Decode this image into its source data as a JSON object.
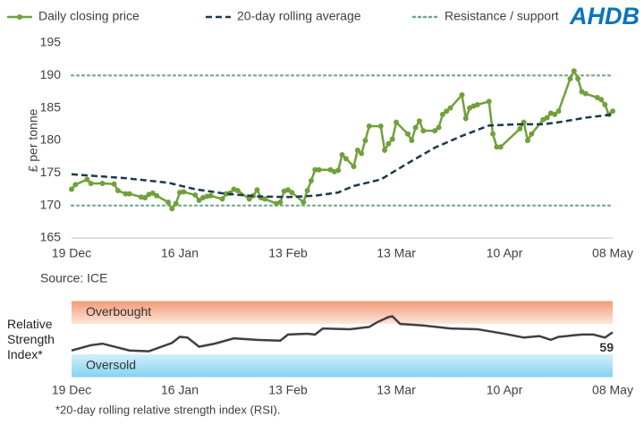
{
  "logo": "AHDB",
  "chart_data": [
    {
      "type": "line",
      "ylabel": "£ per tonne",
      "xlim": [
        "19 Dec",
        "08 May"
      ],
      "xticks": [
        "19 Dec",
        "16 Jan",
        "13 Feb",
        "13 Mar",
        "10 Apr",
        "08 May"
      ],
      "ylim": [
        165,
        195
      ],
      "yticks": [
        165,
        170,
        175,
        180,
        185,
        190,
        195
      ],
      "series": [
        {
          "name": "Daily closing price",
          "color": "#71a03c",
          "style": "solid",
          "markers": true,
          "x": [
            "19 Dec",
            "20 Dec",
            "23 Dec",
            "24 Dec",
            "27 Dec",
            "30 Dec",
            "31 Dec",
            "02 Jan",
            "03 Jan",
            "06 Jan",
            "07 Jan",
            "08 Jan",
            "09 Jan",
            "10 Jan",
            "13 Jan",
            "14 Jan",
            "15 Jan",
            "16 Jan",
            "17 Jan",
            "20 Jan",
            "21 Jan",
            "22 Jan",
            "23 Jan",
            "24 Jan",
            "27 Jan",
            "28 Jan",
            "29 Jan",
            "30 Jan",
            "31 Jan",
            "03 Feb",
            "04 Feb",
            "05 Feb",
            "06 Feb",
            "07 Feb",
            "10 Feb",
            "11 Feb",
            "12 Feb",
            "13 Feb",
            "14 Feb",
            "17 Feb",
            "18 Feb",
            "19 Feb",
            "20 Feb",
            "21 Feb",
            "24 Feb",
            "25 Feb",
            "26 Feb",
            "27 Feb",
            "28 Feb",
            "02 Mar",
            "03 Mar",
            "04 Mar",
            "05 Mar",
            "06 Mar",
            "09 Mar",
            "10 Mar",
            "11 Mar",
            "12 Mar",
            "13 Mar",
            "16 Mar",
            "17 Mar",
            "18 Mar",
            "19 Mar",
            "20 Mar",
            "23 Mar",
            "24 Mar",
            "25 Mar",
            "26 Mar",
            "27 Mar",
            "30 Mar",
            "31 Mar",
            "01 Apr",
            "02 Apr",
            "03 Apr",
            "06 Apr",
            "07 Apr",
            "08 Apr",
            "09 Apr",
            "14 Apr",
            "15 Apr",
            "16 Apr",
            "17 Apr",
            "20 Apr",
            "21 Apr",
            "22 Apr",
            "23 Apr",
            "24 Apr",
            "27 Apr",
            "28 Apr",
            "29 Apr",
            "30 Apr",
            "01 May",
            "04 May",
            "05 May",
            "06 May",
            "07 May",
            "08 May"
          ],
          "values": [
            172.5,
            173.2,
            174.0,
            173.4,
            173.4,
            173.3,
            172.3,
            171.8,
            171.8,
            171.3,
            171.2,
            171.7,
            171.9,
            171.5,
            170.5,
            169.5,
            170.3,
            172.0,
            172.1,
            171.6,
            170.8,
            171.2,
            171.4,
            171.5,
            171.0,
            171.8,
            171.9,
            172.5,
            172.3,
            171.0,
            171.5,
            172.4,
            171.2,
            171.0,
            170.3,
            170.5,
            172.2,
            172.4,
            172.0,
            170.5,
            172.3,
            173.8,
            175.5,
            175.5,
            175.5,
            175.2,
            175.4,
            177.8,
            177.2,
            176.0,
            178.5,
            178.0,
            180.0,
            182.2,
            182.2,
            178.5,
            179.5,
            180.2,
            182.8,
            181.0,
            180.0,
            182.0,
            183.0,
            181.5,
            181.5,
            182.0,
            184.0,
            184.5,
            185.0,
            187.0,
            183.4,
            185.0,
            185.3,
            185.5,
            186.0,
            181.0,
            179.0,
            179.0,
            181.8,
            182.8,
            180.0,
            181.0,
            183.2,
            183.5,
            184.2,
            184.0,
            184.5,
            189.5,
            190.7,
            189.5,
            187.5,
            187.2,
            186.6,
            186.3,
            185.5,
            184.0,
            184.5
          ]
        },
        {
          "name": "20-day rolling average",
          "color": "#1c3a4a",
          "style": "dashed",
          "markers": false,
          "x": [
            "19 Dec",
            "02 Jan",
            "13 Jan",
            "20 Jan",
            "28 Jan",
            "05 Feb",
            "13 Feb",
            "20 Feb",
            "26 Feb",
            "02 Mar",
            "09 Mar",
            "16 Mar",
            "23 Mar",
            "30 Mar",
            "06 Apr",
            "14 Apr",
            "20 Apr",
            "24 Apr",
            "01 May",
            "08 May"
          ],
          "values": [
            174.8,
            174.2,
            173.5,
            172.5,
            171.8,
            171.4,
            171.3,
            171.5,
            172.0,
            173.0,
            174.0,
            176.5,
            178.9,
            180.7,
            182.3,
            182.5,
            182.5,
            182.8,
            183.5,
            184.0
          ]
        }
      ],
      "reference_lines": {
        "name": "Resistance / support",
        "color": "#6fa88a",
        "style": "dotted",
        "values": [
          190,
          170
        ]
      },
      "source": "Source: ICE"
    },
    {
      "type": "line",
      "ylabel": "Relative Strength Index*",
      "xlim": [
        "19 Dec",
        "08 May"
      ],
      "xticks": [
        "19 Dec",
        "16 Jan",
        "13 Feb",
        "13 Mar",
        "10 Apr",
        "08 May"
      ],
      "ylim": [
        0,
        100
      ],
      "bands": [
        {
          "label": "Overbought",
          "range": [
            70,
            100
          ],
          "colors": [
            "#f39a76",
            "#fde6dc"
          ]
        },
        {
          "label": "Oversold",
          "range": [
            0,
            30
          ],
          "colors": [
            "#d3f0fb",
            "#84d2f2"
          ]
        }
      ],
      "series": [
        {
          "color": "#404040",
          "style": "solid",
          "markers": false,
          "label_last": true,
          "x": [
            "19 Dec",
            "24 Dec",
            "27 Dec",
            "03 Jan",
            "08 Jan",
            "14 Jan",
            "16 Jan",
            "18 Jan",
            "21 Jan",
            "25 Jan",
            "30 Jan",
            "05 Feb",
            "11 Feb",
            "13 Feb",
            "18 Feb",
            "20 Feb",
            "22 Feb",
            "01 Mar",
            "06 Mar",
            "08 Mar",
            "11 Mar",
            "12 Mar",
            "14 Mar",
            "20 Mar",
            "27 Mar",
            "03 Apr",
            "10 Apr",
            "15 Apr",
            "19 Apr",
            "22 Apr",
            "24 Apr",
            "30 Apr",
            "03 May",
            "06 May",
            "08 May"
          ],
          "values": [
            35,
            42,
            44,
            35,
            34,
            45,
            53,
            52,
            40,
            44,
            51,
            49,
            48,
            56,
            57,
            56,
            64,
            63,
            66,
            72,
            79,
            80,
            70,
            68,
            64,
            63,
            57,
            52,
            54,
            49,
            53,
            56,
            56,
            52,
            59
          ]
        }
      ],
      "footnote": "*20-day rolling relative strength index (RSI)."
    }
  ]
}
